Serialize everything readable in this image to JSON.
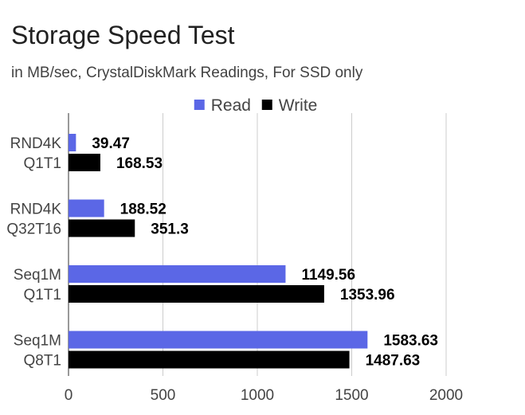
{
  "chart_data": {
    "type": "bar",
    "orientation": "horizontal",
    "title": "Storage Speed Test",
    "subtitle": "in MB/sec, CrystalDiskMark Readings, For SSD only",
    "categories": [
      [
        "RND4K",
        "Q1T1"
      ],
      [
        "RND4K",
        "Q32T16"
      ],
      [
        "Seq1M",
        "Q1T1"
      ],
      [
        "Seq1M",
        "Q8T1"
      ]
    ],
    "series": [
      {
        "name": "Read",
        "color": "#5b67e6",
        "values": [
          39.47,
          188.52,
          1149.56,
          1583.63
        ]
      },
      {
        "name": "Write",
        "color": "#000000",
        "values": [
          168.53,
          351.3,
          1353.96,
          1487.63
        ]
      }
    ],
    "data_labels": {
      "Read": [
        "39.47",
        "188.52",
        "1149.56",
        "1583.63"
      ],
      "Write": [
        "168.53",
        "351.3",
        "1353.96",
        "1487.63"
      ]
    },
    "x_ticks": [
      0,
      500,
      1000,
      1500,
      2000
    ],
    "xlim": [
      0,
      2000
    ],
    "xlabel": "",
    "ylabel": "",
    "grid": true,
    "legend_position": "top"
  }
}
